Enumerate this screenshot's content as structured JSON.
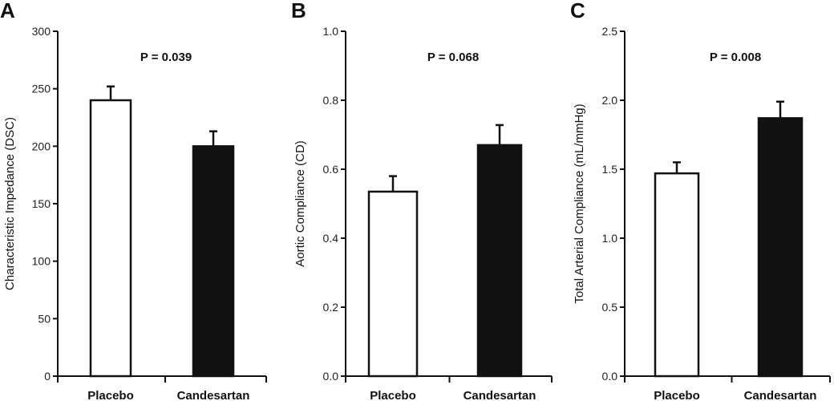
{
  "chart_data": [
    {
      "type": "bar",
      "panel": "A",
      "annotation": "P = 0.039",
      "ylabel": "Characteristic Impedance (DSC)",
      "ylim": [
        0,
        300
      ],
      "yticks": [
        0,
        50,
        100,
        150,
        200,
        250,
        300
      ],
      "ytick_labels": [
        "0",
        "50",
        "100",
        "150",
        "200",
        "250",
        "300"
      ],
      "categories": [
        "Placebo",
        "Candesartan"
      ],
      "values": [
        240,
        200
      ],
      "errors": [
        12,
        13
      ],
      "bar_colors": [
        "#ffffff",
        "#111111"
      ]
    },
    {
      "type": "bar",
      "panel": "B",
      "annotation": "P = 0.068",
      "ylabel": "Aortic Compliance (CD)",
      "ylim": [
        0,
        1.0
      ],
      "yticks": [
        0,
        0.2,
        0.4,
        0.6,
        0.8,
        1.0
      ],
      "ytick_labels": [
        "0.0",
        "0.2",
        "0.4",
        "0.6",
        "0.8",
        "1.0"
      ],
      "categories": [
        "Placebo",
        "Candesartan"
      ],
      "values": [
        0.535,
        0.67
      ],
      "errors": [
        0.045,
        0.058
      ],
      "bar_colors": [
        "#ffffff",
        "#111111"
      ]
    },
    {
      "type": "bar",
      "panel": "C",
      "annotation": "P = 0.008",
      "ylabel": "Total Arterial Compliance (mL/mmHg)",
      "ylim": [
        0,
        2.5
      ],
      "yticks": [
        0,
        0.5,
        1.0,
        1.5,
        2.0,
        2.5
      ],
      "ytick_labels": [
        "0.0",
        "0.5",
        "1.0",
        "1.5",
        "2.0",
        "2.5"
      ],
      "categories": [
        "Placebo",
        "Candesartan"
      ],
      "values": [
        1.47,
        1.87
      ],
      "errors": [
        0.08,
        0.12
      ],
      "bar_colors": [
        "#ffffff",
        "#111111"
      ]
    }
  ]
}
